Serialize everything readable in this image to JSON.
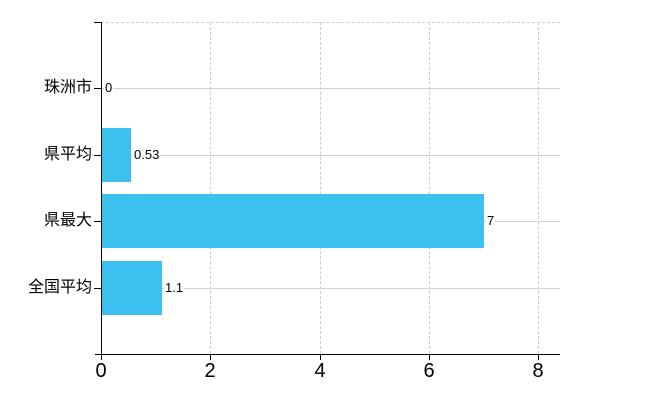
{
  "chart_data": {
    "type": "bar",
    "orientation": "horizontal",
    "title": "",
    "xlabel": "",
    "ylabel": "",
    "categories": [
      "珠洲市",
      "県平均",
      "県最大",
      "全国平均"
    ],
    "values": [
      0,
      0.53,
      7,
      1.1
    ],
    "value_labels": [
      "0",
      "0.53",
      "7",
      "1.1"
    ],
    "xticks": [
      "0",
      "2",
      "4",
      "6",
      "8"
    ],
    "xtick_values": [
      0,
      2,
      4,
      6,
      8
    ],
    "xlim": [
      0,
      8.4
    ],
    "grid": true,
    "legend": "none",
    "colors": {
      "bar": "#3cc0f0",
      "h_gridline": "#ccd5cc",
      "v_gridline": "#cccccc",
      "top_border": "#d9cfcf",
      "axis": "#000000",
      "text": "#000000",
      "background": "#ffffff"
    }
  }
}
